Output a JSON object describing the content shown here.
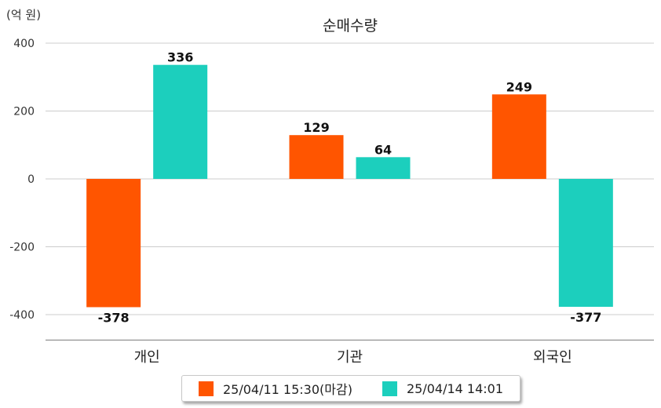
{
  "chart_data": {
    "type": "bar",
    "title": "순매수량",
    "unit_label": "(억 원)",
    "categories": [
      "개인",
      "기관",
      "외국인"
    ],
    "series": [
      {
        "name": "25/04/11 15:30(마감)",
        "color": "#ff5500",
        "values": [
          -378,
          129,
          249
        ]
      },
      {
        "name": "25/04/14 14:01",
        "color": "#1ccfbd",
        "values": [
          336,
          64,
          -377
        ]
      }
    ],
    "ylim": [
      -475,
      400
    ],
    "yticks": [
      400,
      200,
      0,
      -200,
      -400
    ],
    "grid": true,
    "legend_position": "bottom"
  }
}
